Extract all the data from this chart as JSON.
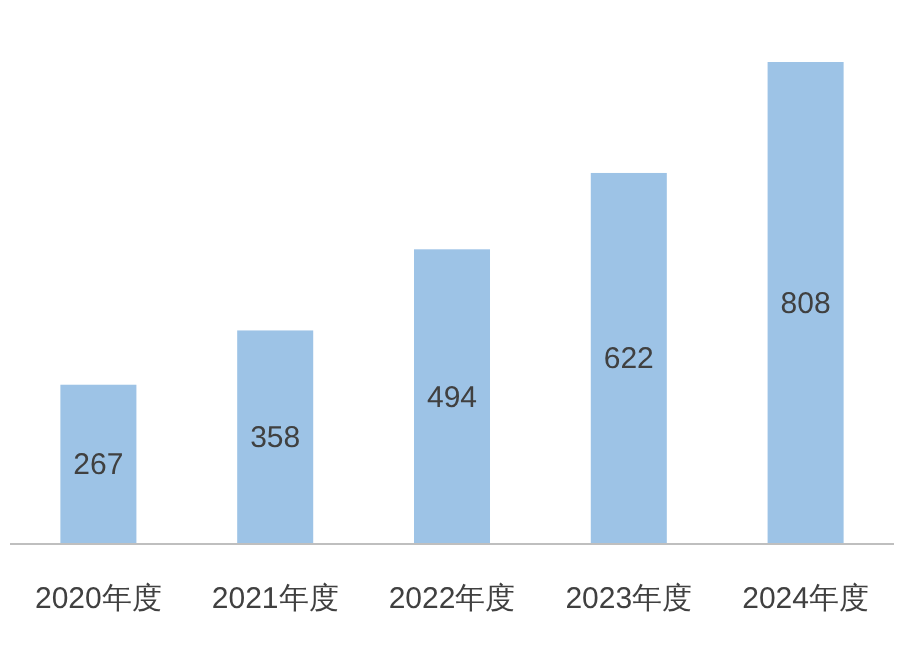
{
  "chart_data": {
    "type": "bar",
    "categories": [
      "2020年度",
      "2021年度",
      "2022年度",
      "2023年度",
      "2024年度"
    ],
    "values": [
      267,
      358,
      494,
      622,
      808
    ],
    "color": "#9dc3e6",
    "data_labels": true
  }
}
